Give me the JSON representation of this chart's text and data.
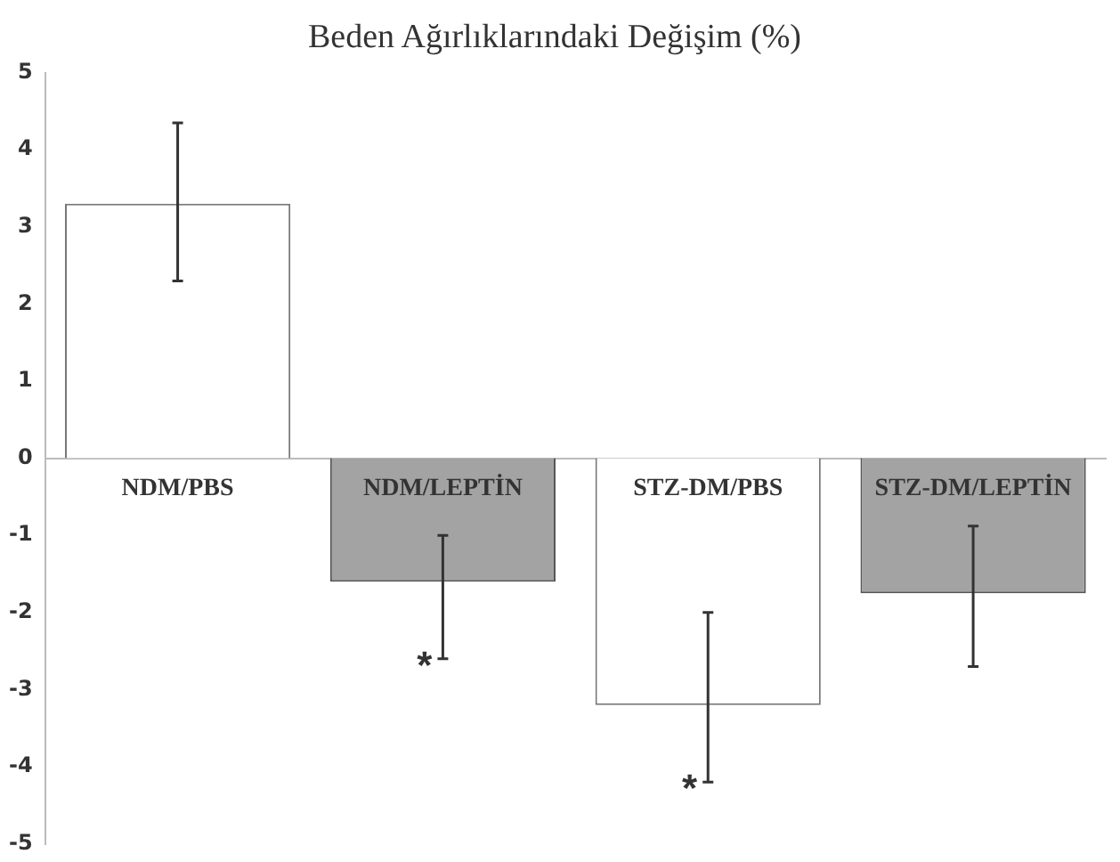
{
  "chart_data": {
    "type": "bar",
    "title": "Beden Ağırlıklarındaki Değişim (%)",
    "categories": [
      "NDM/PBS",
      "NDM/LEPTİN",
      "STZ-DM/PBS",
      "STZ-DM/LEPTİN"
    ],
    "values": [
      3.3,
      -1.6,
      -3.2,
      -1.75
    ],
    "colors": [
      "#ffffff",
      "#a3a3a3",
      "#ffffff",
      "#a3a3a3"
    ],
    "errors": [
      [
        2.3,
        4.35
      ],
      [
        -2.6,
        -1.0
      ],
      [
        -4.2,
        -2.0
      ],
      [
        -2.7,
        -0.88
      ]
    ],
    "ylim": [
      -5,
      5
    ],
    "yticks": [
      -5,
      -4,
      -3,
      -2,
      -1,
      0,
      1,
      2,
      3,
      4,
      5
    ],
    "grid": false,
    "legend": false,
    "annotations": [
      {
        "text": "*",
        "x": "NDM/LEPTİN",
        "y": -2.6
      },
      {
        "text": "*",
        "x": "STZ-DM/PBS",
        "y": -4.2
      }
    ]
  }
}
